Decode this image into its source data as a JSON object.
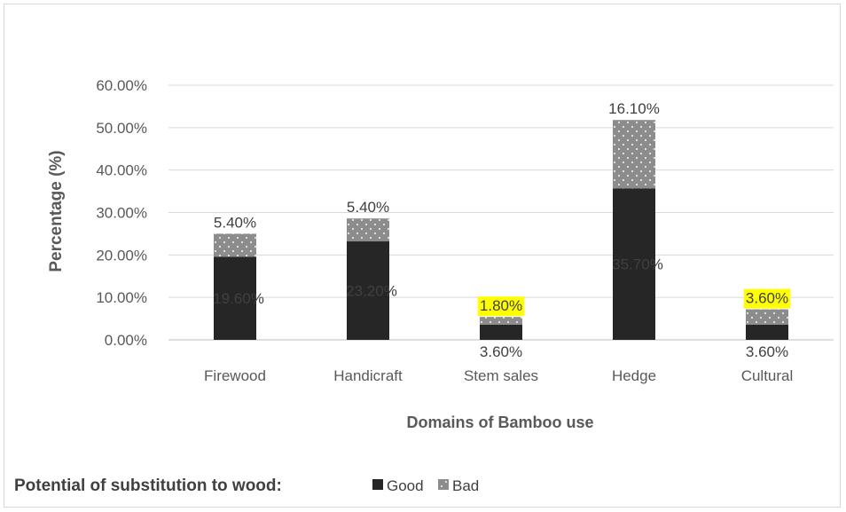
{
  "chart_data": {
    "type": "bar",
    "stacked": true,
    "title": "",
    "xlabel": "Domains of Bamboo use",
    "ylabel": "Percentage (%)",
    "ylim": [
      0,
      60
    ],
    "yticks": [
      "0.00%",
      "10.00%",
      "20.00%",
      "30.00%",
      "40.00%",
      "50.00%",
      "60.00%"
    ],
    "grid": true,
    "categories": [
      "Firewood",
      "Handicraft",
      "Stem sales",
      "Hedge",
      "Cultural"
    ],
    "series": [
      {
        "name": "Good",
        "values": [
          19.6,
          23.2,
          3.6,
          35.7,
          3.6
        ],
        "labels": [
          "19.60%",
          "23.20%",
          "3.60%",
          "35.70%",
          "3.60%"
        ],
        "color": "#262626"
      },
      {
        "name": "Bad",
        "values": [
          5.4,
          5.4,
          1.8,
          16.1,
          3.6
        ],
        "labels": [
          "5.40%",
          "5.40%",
          "1.80%",
          "16.10%",
          "3.60%"
        ],
        "color": "#8c8c8c",
        "pattern": "dotted"
      }
    ],
    "highlighted_labels": [
      "1.80%",
      "3.60%"
    ],
    "highlight_color": "#ffff00",
    "legend": {
      "position": "bottom-left",
      "title": "Potential of substitution to wood:"
    }
  }
}
